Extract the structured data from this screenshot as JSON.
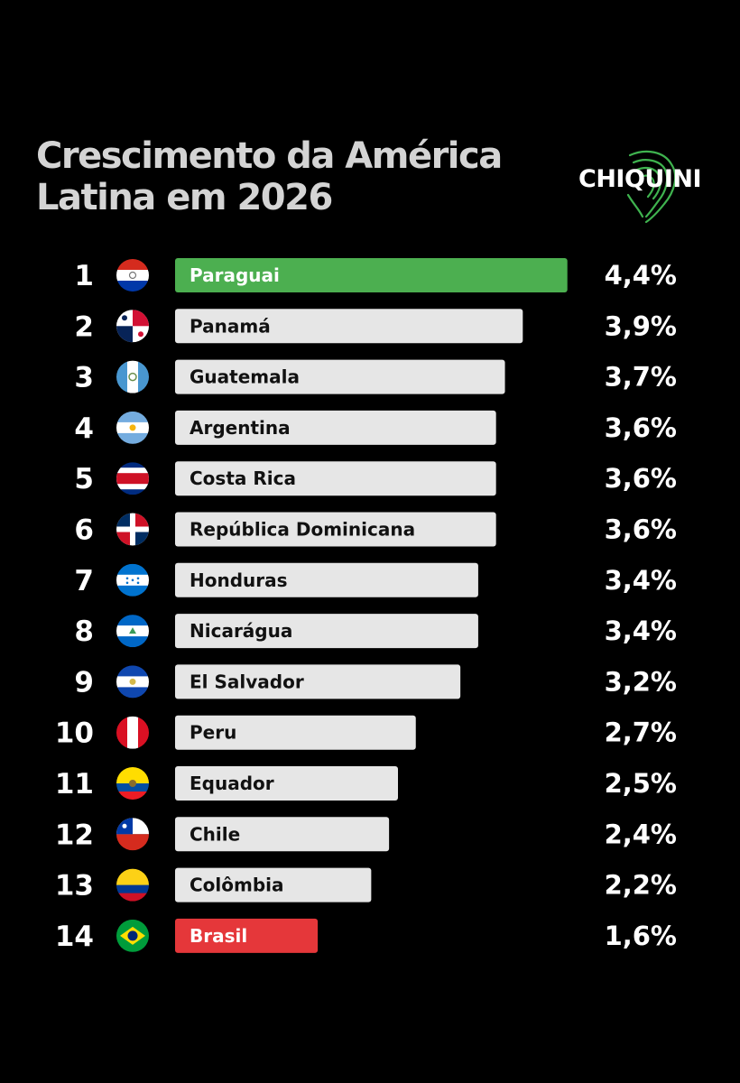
{
  "title_lines": [
    "Crescimento da América",
    "Latina em 2026"
  ],
  "logo": {
    "text": "CHIQUINI",
    "icon": "fingerprint-map-icon",
    "color": "#3fb34f"
  },
  "colors": {
    "background": "#000000",
    "bar_default": "#e6e6e6",
    "bar_highlight_top": "#4caf50",
    "bar_highlight_bottom": "#e5373a",
    "label_default": "#111111",
    "label_highlight": "#ffffff"
  },
  "chart_data": {
    "type": "bar",
    "orientation": "horizontal",
    "title": "Crescimento da América Latina em 2026",
    "unit": "%",
    "categories": [
      "Paraguai",
      "Panamá",
      "Guatemala",
      "Argentina",
      "Costa Rica",
      "República Dominicana",
      "Honduras",
      "Nicarágua",
      "El Salvador",
      "Peru",
      "Equador",
      "Chile",
      "Colômbia",
      "Brasil"
    ],
    "ranks": [
      "1",
      "2",
      "3",
      "4",
      "5",
      "6",
      "7",
      "8",
      "9",
      "10",
      "11",
      "12",
      "13",
      "14"
    ],
    "values": [
      4.4,
      3.9,
      3.7,
      3.6,
      3.6,
      3.6,
      3.4,
      3.4,
      3.2,
      2.7,
      2.5,
      2.4,
      2.2,
      1.6
    ],
    "value_labels": [
      "4,4%",
      "3,9%",
      "3,7%",
      "3,6%",
      "3,6%",
      "3,6%",
      "3,4%",
      "3,4%",
      "3,2%",
      "2,7%",
      "2,5%",
      "2,4%",
      "2,2%",
      "1,6%"
    ],
    "flags": [
      "paraguay-flag-icon",
      "panama-flag-icon",
      "guatemala-flag-icon",
      "argentina-flag-icon",
      "costa-rica-flag-icon",
      "dominican-republic-flag-icon",
      "honduras-flag-icon",
      "nicaragua-flag-icon",
      "el-salvador-flag-icon",
      "peru-flag-icon",
      "ecuador-flag-icon",
      "chile-flag-icon",
      "colombia-flag-icon",
      "brazil-flag-icon"
    ],
    "highlight": {
      "Paraguai": "#4caf50",
      "Brasil": "#e5373a"
    },
    "grid": false,
    "legend": "none"
  }
}
